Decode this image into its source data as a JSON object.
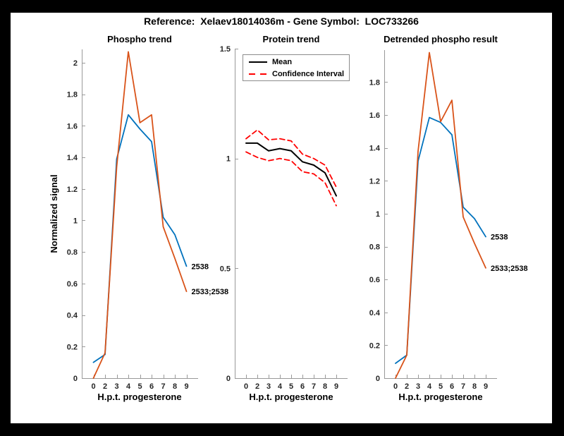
{
  "page": {
    "background": "#000000",
    "figure_background": "#ffffff",
    "main_title": "Reference:  Xelaev18014036m - Gene Symbol:  LOC733266"
  },
  "colors": {
    "series_blue": "#0072BD",
    "series_orange": "#D95319",
    "mean_black": "#000000",
    "ci_red": "#FF0000",
    "axis_line": "#999999",
    "tick_label": "#262626"
  },
  "chart_data": [
    {
      "type": "line",
      "title": "Phospho trend",
      "xlabel": "H.p.t. progesterone",
      "ylabel": "Normalized signal",
      "x_tick_labels": [
        "0",
        "2",
        "3",
        "4",
        "5",
        "6",
        "7",
        "8",
        "9"
      ],
      "xlim": [
        0,
        10
      ],
      "ylim": [
        0,
        2.085
      ],
      "y_ticks": [
        0,
        0.2,
        0.4,
        0.6,
        0.8,
        1,
        1.2,
        1.4,
        1.6,
        1.8,
        2
      ],
      "grid": false,
      "series": [
        {
          "name": "2538",
          "color": "#0072BD",
          "style": "solid",
          "width": 1.8,
          "end_label": "2538",
          "values": [
            0.1,
            0.15,
            1.39,
            1.67,
            1.58,
            1.5,
            1.02,
            0.91,
            0.71
          ]
        },
        {
          "name": "2533;2538",
          "color": "#D95319",
          "style": "solid",
          "width": 1.8,
          "end_label": "2533;2538",
          "values": [
            0.0,
            0.16,
            1.34,
            2.07,
            1.62,
            1.67,
            0.96,
            0.76,
            0.55
          ]
        }
      ]
    },
    {
      "type": "line",
      "title": "Protein trend",
      "xlabel": "H.p.t. progesterone",
      "ylabel": "",
      "x_tick_labels": [
        "0",
        "2",
        "3",
        "4",
        "5",
        "6",
        "7",
        "8",
        "9"
      ],
      "xlim": [
        0,
        10
      ],
      "ylim": [
        0,
        1.5
      ],
      "y_ticks": [
        0,
        0.5,
        1,
        1.5
      ],
      "grid": false,
      "legend": {
        "position": "top-left",
        "entries": [
          {
            "label": "Mean",
            "color": "#000000",
            "style": "solid"
          },
          {
            "label": "Confidence Interval",
            "color": "#FF0000",
            "style": "dashed"
          }
        ]
      },
      "series": [
        {
          "name": "Mean",
          "color": "#000000",
          "style": "solid",
          "width": 2,
          "values": [
            1.07,
            1.07,
            1.035,
            1.045,
            1.035,
            0.985,
            0.97,
            0.935,
            0.83
          ]
        },
        {
          "name": "Confidence Interval upper",
          "color": "#FF0000",
          "style": "dashed",
          "width": 1.8,
          "values": [
            1.09,
            1.13,
            1.085,
            1.09,
            1.08,
            1.02,
            1.0,
            0.97,
            0.87
          ]
        },
        {
          "name": "Confidence Interval lower",
          "color": "#FF0000",
          "style": "dashed",
          "width": 1.8,
          "values": [
            1.03,
            1.005,
            0.99,
            1.0,
            0.99,
            0.94,
            0.93,
            0.89,
            0.785
          ]
        }
      ]
    },
    {
      "type": "line",
      "title": "Detrended phospho result",
      "xlabel": "H.p.t. progesterone",
      "ylabel": "",
      "x_tick_labels": [
        "0",
        "2",
        "3",
        "4",
        "5",
        "6",
        "7",
        "8",
        "9"
      ],
      "xlim": [
        0,
        10
      ],
      "ylim": [
        0,
        1.995
      ],
      "y_ticks": [
        0,
        0.2,
        0.4,
        0.6,
        0.8,
        1,
        1.2,
        1.4,
        1.6,
        1.8
      ],
      "grid": false,
      "series": [
        {
          "name": "2538",
          "color": "#0072BD",
          "style": "solid",
          "width": 1.8,
          "end_label": "2538",
          "values": [
            0.09,
            0.14,
            1.32,
            1.585,
            1.555,
            1.48,
            1.04,
            0.97,
            0.86
          ]
        },
        {
          "name": "2533;2538",
          "color": "#D95319",
          "style": "solid",
          "width": 1.8,
          "end_label": "2533;2538",
          "values": [
            0.0,
            0.14,
            1.38,
            1.98,
            1.56,
            1.69,
            0.98,
            0.82,
            0.67
          ]
        }
      ]
    }
  ]
}
